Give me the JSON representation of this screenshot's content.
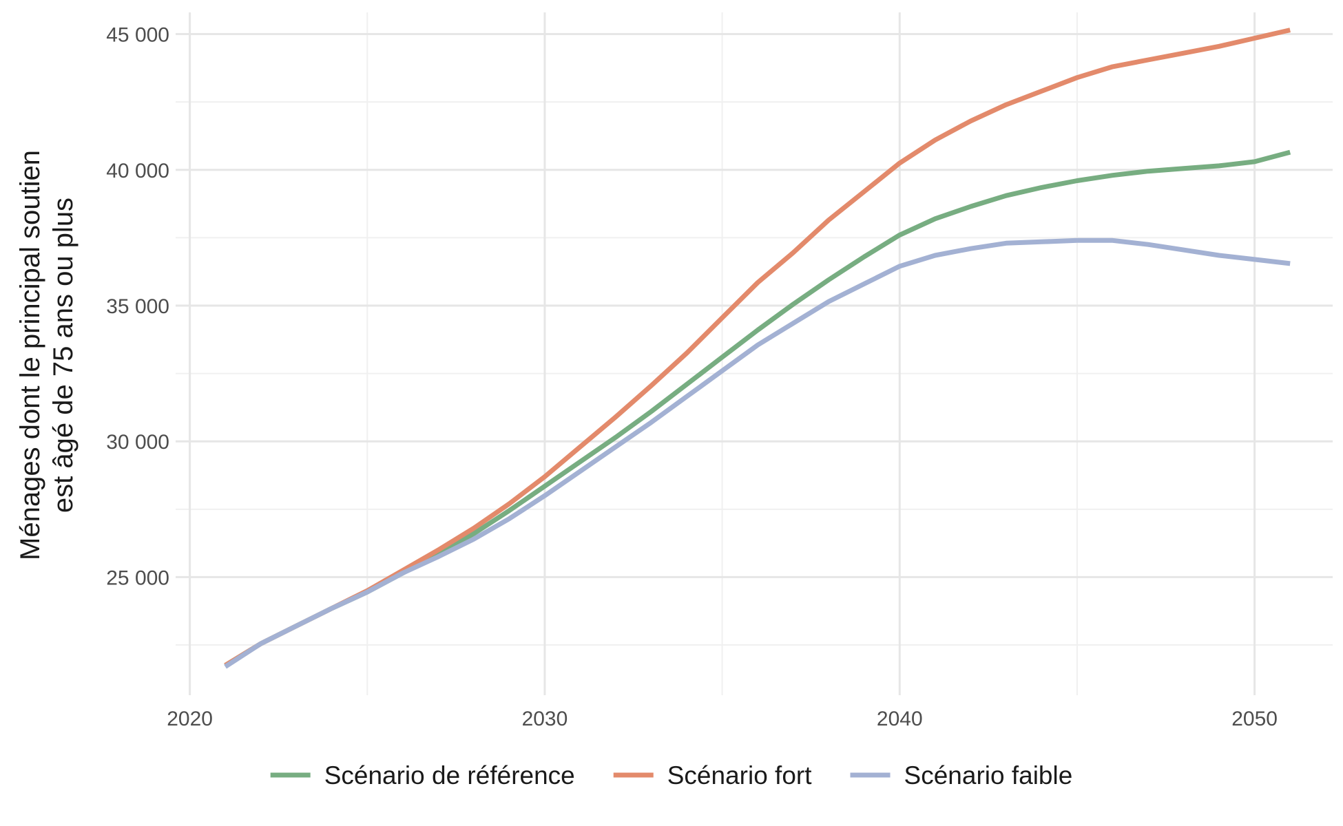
{
  "chart_data": {
    "type": "line",
    "title": "",
    "xlabel": "",
    "ylabel_lines": [
      "Ménages dont le principal soutien",
      "est âgé de 75 ans ou plus"
    ],
    "xlim": [
      2019.6,
      2052.2
    ],
    "ylim": [
      20650,
      45800
    ],
    "x_ticks": [
      2020,
      2030,
      2040,
      2050
    ],
    "x_tick_labels": [
      "2020",
      "2030",
      "2040",
      "2050"
    ],
    "x_minor_ticks": [
      2025,
      2035,
      2045
    ],
    "y_ticks": [
      25000,
      30000,
      35000,
      40000,
      45000
    ],
    "y_tick_labels": [
      "25 000",
      "30 000",
      "35 000",
      "40 000",
      "45 000"
    ],
    "y_minor_ticks": [
      22500,
      27500,
      32500,
      37500,
      42500
    ],
    "grid": true,
    "legend_position": "bottom",
    "x": [
      2021,
      2022,
      2023,
      2024,
      2025,
      2026,
      2027,
      2028,
      2029,
      2030,
      2031,
      2032,
      2033,
      2034,
      2035,
      2036,
      2037,
      2038,
      2039,
      2040,
      2041,
      2042,
      2043,
      2044,
      2045,
      2046,
      2047,
      2048,
      2049,
      2050,
      2051
    ],
    "series": [
      {
        "name": "Scénario de référence",
        "color": "#77ad81",
        "values": [
          21750,
          22550,
          23200,
          23850,
          24450,
          25150,
          25850,
          26600,
          27450,
          28350,
          29250,
          30150,
          31100,
          32100,
          33100,
          34100,
          35050,
          35950,
          36800,
          37600,
          38200,
          38650,
          39050,
          39350,
          39600,
          39800,
          39950,
          40050,
          40150,
          40300,
          40650
        ]
      },
      {
        "name": "Scénario fort",
        "color": "#e38a6b",
        "values": [
          21750,
          22550,
          23200,
          23850,
          24500,
          25250,
          26000,
          26800,
          27700,
          28700,
          29800,
          30900,
          32050,
          33250,
          34550,
          35850,
          36950,
          38150,
          39200,
          40250,
          41100,
          41800,
          42400,
          42900,
          43400,
          43800,
          44050,
          44300,
          44550,
          44850,
          45150
        ]
      },
      {
        "name": "Scénario faible",
        "color": "#a3b1d3",
        "values": [
          21700,
          22550,
          23200,
          23850,
          24450,
          25150,
          25750,
          26400,
          27150,
          28000,
          28900,
          29800,
          30700,
          31650,
          32600,
          33550,
          34350,
          35150,
          35800,
          36450,
          36850,
          37100,
          37300,
          37350,
          37400,
          37400,
          37250,
          37050,
          36850,
          36700,
          36550
        ]
      }
    ]
  }
}
